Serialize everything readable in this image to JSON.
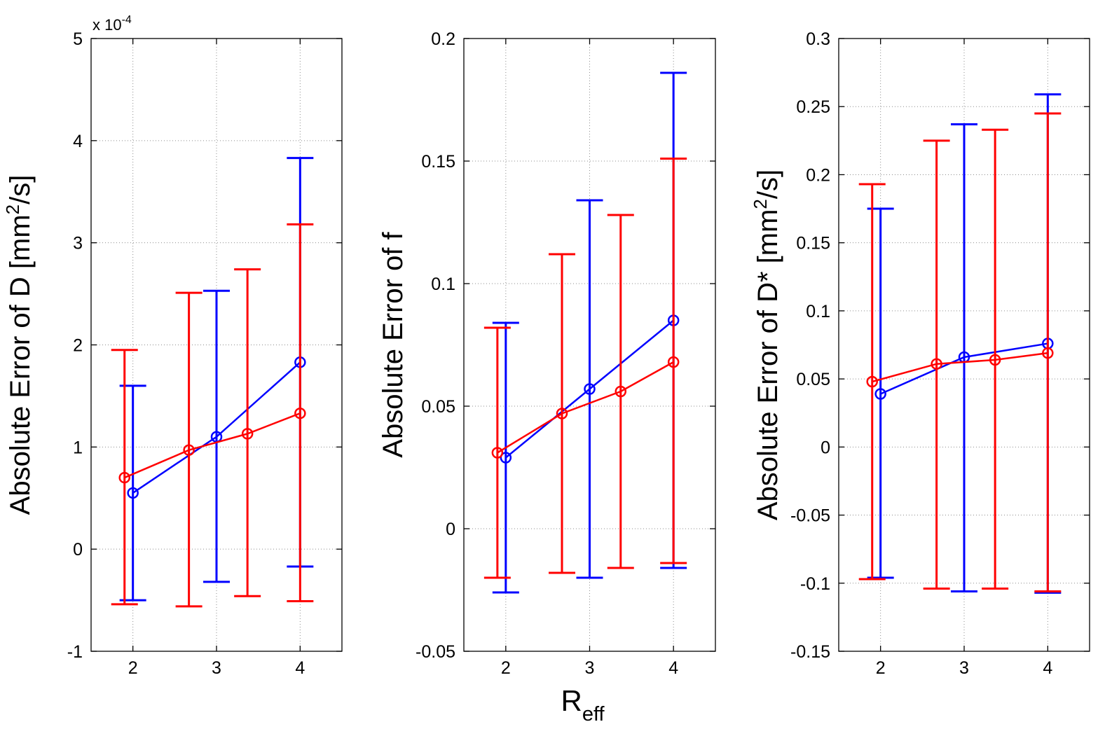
{
  "chart_data": [
    {
      "type": "errorbar",
      "ylabel_prefix": "Absolute Error of D [mm",
      "ylabel_sup": "2",
      "ylabel_suffix": "/s]",
      "exponent_prefix": "x 10",
      "exponent_sup": "-4",
      "xlim": [
        1.5,
        4.5
      ],
      "ylim": [
        -1,
        5
      ],
      "xticks": [
        2,
        3,
        4
      ],
      "xtick_labels": [
        "2",
        "3",
        "4"
      ],
      "yticks": [
        -1,
        0,
        1,
        2,
        3,
        4,
        5
      ],
      "ytick_labels": [
        "-1",
        "0",
        "1",
        "2",
        "3",
        "4",
        "5"
      ],
      "grid": true,
      "series": [
        {
          "name": "blue",
          "color": "#0000ff",
          "x": [
            2,
            3,
            4
          ],
          "y": [
            0.55,
            1.1,
            1.83
          ],
          "lower": [
            -0.5,
            -0.32,
            -0.17
          ],
          "upper": [
            1.6,
            2.53,
            3.83
          ]
        },
        {
          "name": "red",
          "color": "#ff0000",
          "x": [
            1.9,
            2.67,
            3.37,
            4
          ],
          "y": [
            0.7,
            0.97,
            1.13,
            1.33
          ],
          "lower": [
            -0.54,
            -0.56,
            -0.46,
            -0.51
          ],
          "upper": [
            1.95,
            2.51,
            2.74,
            3.18
          ]
        }
      ]
    },
    {
      "type": "errorbar",
      "ylabel": "Absolute Error of f",
      "xlabel_main": "R",
      "xlabel_sub": "eff",
      "xlim": [
        1.5,
        4.5
      ],
      "ylim": [
        -0.05,
        0.2
      ],
      "xticks": [
        2,
        3,
        4
      ],
      "xtick_labels": [
        "2",
        "3",
        "4"
      ],
      "yticks": [
        -0.05,
        0,
        0.05,
        0.1,
        0.15,
        0.2
      ],
      "ytick_labels": [
        "-0.05",
        "0",
        "0.05",
        "0.1",
        "0.15",
        "0.2"
      ],
      "grid": true,
      "series": [
        {
          "name": "blue",
          "color": "#0000ff",
          "x": [
            2,
            3,
            4
          ],
          "y": [
            0.029,
            0.057,
            0.085
          ],
          "lower": [
            -0.026,
            -0.02,
            -0.016
          ],
          "upper": [
            0.084,
            0.134,
            0.186
          ]
        },
        {
          "name": "red",
          "color": "#ff0000",
          "x": [
            1.9,
            2.67,
            3.37,
            4
          ],
          "y": [
            0.031,
            0.047,
            0.056,
            0.068
          ],
          "lower": [
            -0.02,
            -0.018,
            -0.016,
            -0.014
          ],
          "upper": [
            0.082,
            0.112,
            0.128,
            0.151
          ]
        }
      ]
    },
    {
      "type": "errorbar",
      "ylabel_prefix": "Absolute Error of D* [mm",
      "ylabel_sup": "2",
      "ylabel_suffix": "/s]",
      "xlim": [
        1.5,
        4.5
      ],
      "ylim": [
        -0.15,
        0.3
      ],
      "xticks": [
        2,
        3,
        4
      ],
      "xtick_labels": [
        "2",
        "3",
        "4"
      ],
      "yticks": [
        -0.15,
        -0.1,
        -0.05,
        0,
        0.05,
        0.1,
        0.15,
        0.2,
        0.25,
        0.3
      ],
      "ytick_labels": [
        "-0.15",
        "-0.1",
        "-0.05",
        "0",
        "0.05",
        "0.1",
        "0.15",
        "0.2",
        "0.25",
        "0.3"
      ],
      "grid": true,
      "series": [
        {
          "name": "blue",
          "color": "#0000ff",
          "x": [
            2,
            3,
            4
          ],
          "y": [
            0.039,
            0.066,
            0.076
          ],
          "lower": [
            -0.096,
            -0.106,
            -0.107
          ],
          "upper": [
            0.175,
            0.237,
            0.259
          ]
        },
        {
          "name": "red",
          "color": "#ff0000",
          "x": [
            1.9,
            2.67,
            3.37,
            4
          ],
          "y": [
            0.048,
            0.061,
            0.064,
            0.069
          ],
          "lower": [
            -0.097,
            -0.104,
            -0.104,
            -0.106
          ],
          "upper": [
            0.193,
            0.225,
            0.233,
            0.245
          ]
        }
      ]
    }
  ]
}
